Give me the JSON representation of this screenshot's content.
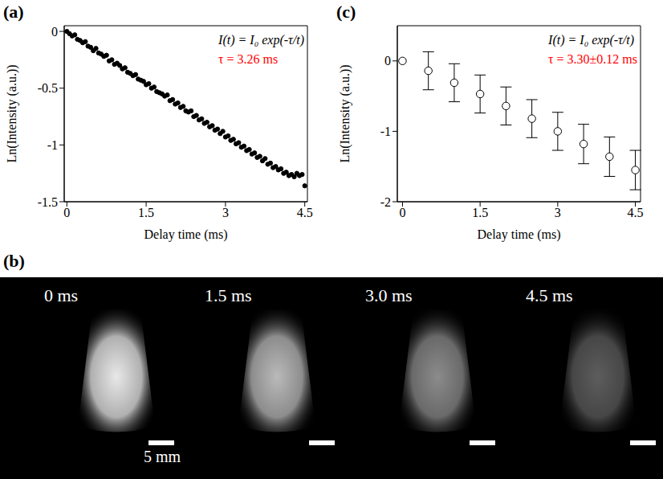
{
  "chart_data": [
    {
      "type": "scatter",
      "title": "(a)",
      "x_label": "Delay time (ms)",
      "y_label": "Ln(Intensity (a.u.))",
      "annotations": [
        {
          "text": "I(t) = I₀ exp(-τ/t)"
        },
        {
          "text": "τ = 3.26 ms",
          "color": "#ff0000"
        }
      ],
      "marker": "filled_circle",
      "color": "#000000",
      "xlim": [
        -0.05,
        4.55
      ],
      "xticks": [
        0,
        1.5,
        3,
        4.5
      ],
      "ylim": [
        -1.5,
        0.05
      ],
      "yticks": [
        0,
        -0.5,
        -1,
        -1.5
      ],
      "x": [
        0,
        0.05,
        0.1,
        0.15,
        0.2,
        0.25,
        0.3,
        0.35,
        0.4,
        0.45,
        0.5,
        0.55,
        0.6,
        0.65,
        0.7,
        0.75,
        0.8,
        0.85,
        0.9,
        0.95,
        1.0,
        1.05,
        1.1,
        1.15,
        1.2,
        1.25,
        1.3,
        1.35,
        1.4,
        1.45,
        1.5,
        1.55,
        1.6,
        1.65,
        1.7,
        1.75,
        1.8,
        1.85,
        1.9,
        1.95,
        2.0,
        2.05,
        2.1,
        2.15,
        2.2,
        2.25,
        2.3,
        2.35,
        2.4,
        2.45,
        2.5,
        2.55,
        2.6,
        2.65,
        2.7,
        2.75,
        2.8,
        2.85,
        2.9,
        2.95,
        3.0,
        3.05,
        3.1,
        3.15,
        3.2,
        3.25,
        3.3,
        3.35,
        3.4,
        3.45,
        3.5,
        3.55,
        3.6,
        3.65,
        3.7,
        3.75,
        3.8,
        3.85,
        3.9,
        3.95,
        4.0,
        4.05,
        4.1,
        4.15,
        4.2,
        4.25,
        4.3,
        4.35,
        4.4,
        4.45,
        4.5
      ],
      "values": [
        0,
        -0.02,
        -0.04,
        -0.03,
        -0.07,
        -0.08,
        -0.1,
        -0.09,
        -0.13,
        -0.14,
        -0.17,
        -0.15,
        -0.19,
        -0.2,
        -0.22,
        -0.21,
        -0.26,
        -0.25,
        -0.29,
        -0.28,
        -0.3,
        -0.33,
        -0.32,
        -0.36,
        -0.37,
        -0.39,
        -0.38,
        -0.42,
        -0.43,
        -0.44,
        -0.47,
        -0.46,
        -0.5,
        -0.49,
        -0.53,
        -0.54,
        -0.55,
        -0.57,
        -0.56,
        -0.61,
        -0.6,
        -0.64,
        -0.63,
        -0.67,
        -0.66,
        -0.7,
        -0.71,
        -0.7,
        -0.75,
        -0.74,
        -0.78,
        -0.77,
        -0.81,
        -0.8,
        -0.84,
        -0.83,
        -0.87,
        -0.86,
        -0.9,
        -0.88,
        -0.93,
        -0.92,
        -0.96,
        -0.95,
        -0.99,
        -0.98,
        -1.02,
        -1.01,
        -1.05,
        -1.04,
        -1.08,
        -1.07,
        -1.11,
        -1.1,
        -1.14,
        -1.12,
        -1.17,
        -1.16,
        -1.2,
        -1.19,
        -1.22,
        -1.21,
        -1.25,
        -1.24,
        -1.27,
        -1.26,
        -1.28,
        -1.25,
        -1.27,
        -1.26,
        -1.36
      ]
    },
    {
      "type": "scatter",
      "title": "(c)",
      "x_label": "Delay time (ms)",
      "y_label": "Ln(Intensity (a.u.))",
      "annotations": [
        {
          "text": "I(t) = I₀ exp(-τ/t)"
        },
        {
          "text": "τ = 3.30±0.12 ms",
          "color": "#ff0000"
        }
      ],
      "marker": "open_circle",
      "color": "#000000",
      "xlim": [
        -0.1,
        4.6
      ],
      "xticks": [
        0,
        1.5,
        3,
        4.5
      ],
      "ylim": [
        -2,
        0.5
      ],
      "yticks": [
        0,
        -1,
        -2
      ],
      "x": [
        0,
        0.5,
        1.0,
        1.5,
        2.0,
        2.5,
        3.0,
        3.5,
        4.0,
        4.5
      ],
      "values": [
        0,
        -0.14,
        -0.31,
        -0.47,
        -0.64,
        -0.82,
        -1.0,
        -1.18,
        -1.36,
        -1.55
      ],
      "errors": [
        null,
        0.27,
        0.27,
        0.27,
        0.27,
        0.27,
        0.27,
        0.28,
        0.28,
        0.28
      ]
    }
  ],
  "images": {
    "title": "(b)",
    "frames": [
      "0 ms",
      "1.5 ms",
      "3.0 ms",
      "4.5 ms"
    ],
    "scale_bar": "5 mm"
  }
}
